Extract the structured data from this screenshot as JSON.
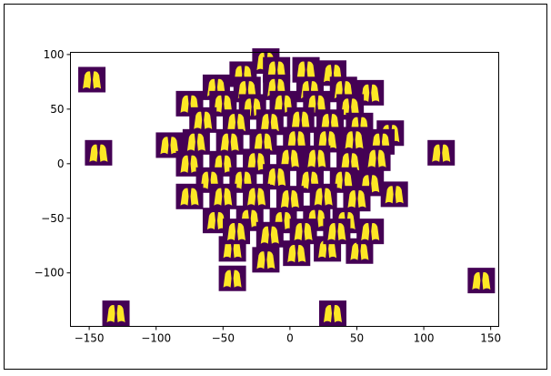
{
  "chart_data": {
    "type": "scatter",
    "marker": "image",
    "marker_bg": "#440154",
    "marker_fg": "#fde725",
    "xlim": [
      -164,
      156
    ],
    "ylim": [
      -149,
      102
    ],
    "xticks": [
      {
        "value": -150,
        "label": "−150"
      },
      {
        "value": -100,
        "label": "−100"
      },
      {
        "value": -50,
        "label": "−50"
      },
      0,
      50,
      100,
      150
    ],
    "yticks": [
      {
        "value": -100,
        "label": "−100"
      },
      {
        "value": -50,
        "label": "−50"
      },
      0,
      50,
      100
    ],
    "x": [
      -148,
      -143,
      -130,
      32,
      113,
      143,
      -43,
      -43,
      -18,
      5,
      28,
      52,
      -18,
      -35,
      -10,
      12,
      32,
      -55,
      -32,
      -10,
      15,
      40,
      60,
      -75,
      -50,
      -28,
      -5,
      20,
      45,
      -65,
      -40,
      -15,
      8,
      30,
      52,
      75,
      -90,
      -70,
      -45,
      -20,
      5,
      28,
      48,
      68,
      -75,
      -50,
      -25,
      0,
      20,
      45,
      65,
      -60,
      -35,
      -10,
      15,
      40,
      60,
      78,
      -75,
      -50,
      -25,
      0,
      25,
      50,
      -55,
      -30,
      -5,
      20,
      42,
      60,
      -40,
      -15,
      10,
      35
    ],
    "y": [
      77,
      10,
      -137,
      -137,
      10,
      -107,
      -105,
      -78,
      -88,
      -82,
      -78,
      -80,
      94,
      82,
      86,
      86,
      83,
      70,
      68,
      70,
      68,
      68,
      65,
      55,
      55,
      52,
      55,
      55,
      52,
      40,
      38,
      38,
      40,
      38,
      35,
      28,
      17,
      20,
      20,
      20,
      22,
      22,
      22,
      20,
      0,
      0,
      2,
      5,
      5,
      2,
      5,
      -15,
      -15,
      -12,
      -15,
      -15,
      -18,
      -28,
      -30,
      -30,
      -30,
      -32,
      -30,
      -32,
      -52,
      -50,
      -52,
      -50,
      -52,
      -62,
      -62,
      -65,
      -62,
      -62
    ]
  }
}
